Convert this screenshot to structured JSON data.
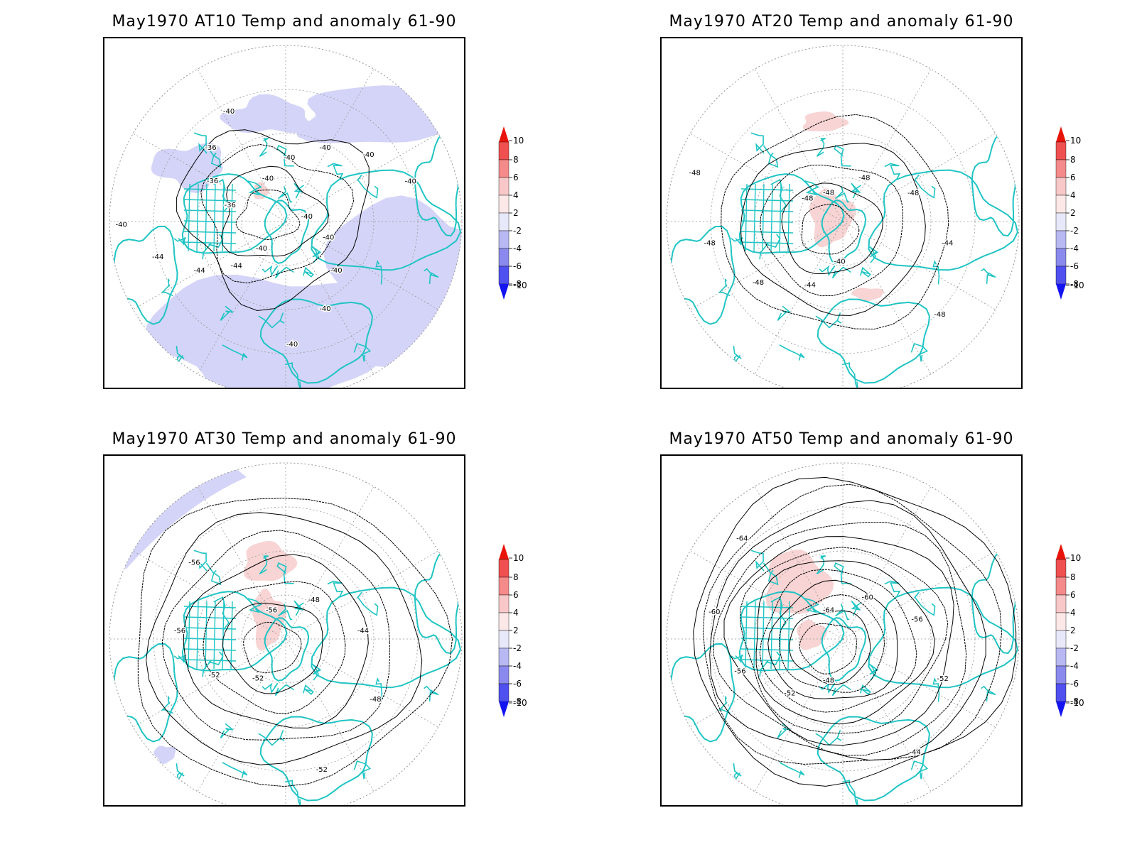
{
  "panels": [
    {
      "id": "at10",
      "title": "May1970 AT10 Temp and anomaly 61-90",
      "contour_labels": [
        "-40",
        "-40",
        "-40",
        "-40",
        "-40",
        "-40",
        "-40",
        "-40",
        "-40",
        "-40",
        "-40",
        "-44",
        "-44",
        "-44",
        "-40",
        "-36",
        "-36",
        "-36",
        "-40"
      ],
      "anomaly": "negative"
    },
    {
      "id": "at20",
      "title": "May1970 AT20 Temp and anomaly 61-90",
      "contour_labels": [
        "-48",
        "-48",
        "-48",
        "-44",
        "-48",
        "-40",
        "-44",
        "-48",
        "-48",
        "-48",
        "-48"
      ],
      "anomaly": "positive"
    },
    {
      "id": "at30",
      "title": "May1970 AT30 Temp and anomaly 61-90",
      "contour_labels": [
        "-56",
        "-48",
        "-44",
        "-48",
        "-52",
        "-52",
        "-52",
        "-56",
        "-56"
      ],
      "anomaly": "mixed"
    },
    {
      "id": "at50",
      "title": "May1970 AT50 Temp and anomaly 61-90",
      "contour_labels": [
        "-64",
        "-60",
        "-56",
        "-52",
        "-44",
        "-48",
        "-52",
        "-56",
        "-60",
        "-64"
      ],
      "anomaly": "positive"
    }
  ],
  "legend": {
    "labels": [
      "10",
      "8",
      "6",
      "4",
      "2",
      "-2",
      "-4",
      "-6",
      "-8",
      "-10"
    ],
    "colors": [
      "#e8140a",
      "#f05050",
      "#f58a8a",
      "#f8c8c8",
      "#fde8e8",
      "#e8e8fb",
      "#b8b8f3",
      "#8a8aee",
      "#5050f0",
      "#1414f0"
    ]
  },
  "colors": {
    "coast": "#20c4c4",
    "contour": "#000000",
    "grid": "#999999",
    "anomaly_neg": "#d4d4f8",
    "anomaly_pos": "#f8d4d4"
  }
}
